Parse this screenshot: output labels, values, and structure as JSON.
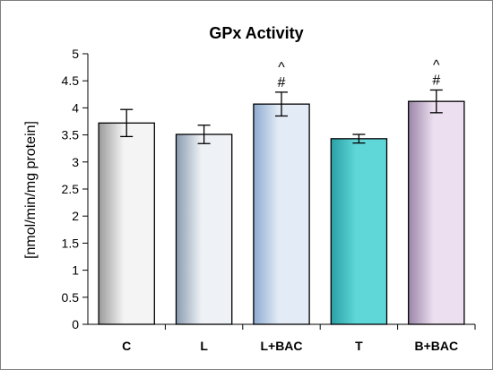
{
  "chart_data": {
    "type": "bar",
    "title": "GPx Activity",
    "xlabel": "",
    "ylabel": "[nmol/min/mg protein]",
    "ylim": [
      0,
      5
    ],
    "yticks": [
      "0",
      "0.5",
      "1",
      "1.5",
      "2",
      "2.5",
      "3",
      "3.5",
      "4",
      "4.5",
      "5"
    ],
    "grid": false,
    "legend": "none",
    "categories": [
      "C",
      "L",
      "L+BAC",
      "T",
      "B+BAC"
    ],
    "values": [
      3.72,
      3.51,
      4.07,
      3.43,
      4.12
    ],
    "errors": [
      0.25,
      0.17,
      0.22,
      0.08,
      0.21
    ],
    "annotations": [
      {
        "category": "L+BAC",
        "lines": [
          "^",
          "#"
        ]
      },
      {
        "category": "B+BAC",
        "lines": [
          "^",
          "#"
        ]
      }
    ],
    "colors": [
      {
        "light": "#f4f4f4",
        "dark": "#9a9a9a"
      },
      {
        "light": "#eef1f5",
        "dark": "#8a9bb0"
      },
      {
        "light": "#e3ecf6",
        "dark": "#8eaad0"
      },
      {
        "light": "#5fd7d8",
        "dark": "#2aa0a6"
      },
      {
        "light": "#ecdff0",
        "dark": "#9b85a8"
      }
    ]
  }
}
